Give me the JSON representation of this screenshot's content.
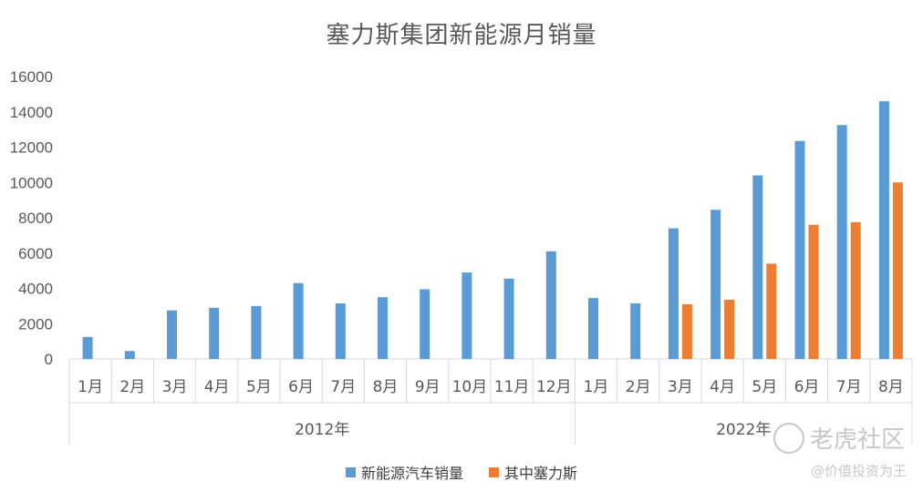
{
  "title": "塞力斯集团新能源月销量",
  "watermark": {
    "text": "老虎社区",
    "sub": "@价值投资为王"
  },
  "colors": {
    "series1": "#5B9BD5",
    "series2": "#ED7D31",
    "axis": "#d9d9d9",
    "text": "#595959"
  },
  "chart_data": {
    "type": "bar",
    "ylim": [
      0,
      16000
    ],
    "yticks": [
      0,
      2000,
      4000,
      6000,
      8000,
      10000,
      12000,
      14000,
      16000
    ],
    "grid": false,
    "legend_position": "bottom",
    "groups": [
      {
        "label": "2012年",
        "count": 12
      },
      {
        "label": "2022年",
        "count": 8
      }
    ],
    "categories": [
      "1月",
      "2月",
      "3月",
      "4月",
      "5月",
      "6月",
      "7月",
      "8月",
      "9月",
      "10月",
      "11月",
      "12月",
      "1月",
      "2月",
      "3月",
      "4月",
      "5月",
      "6月",
      "7月",
      "8月"
    ],
    "series": [
      {
        "name": "新能源汽车销量",
        "color": "#5B9BD5",
        "values": [
          1250,
          450,
          2750,
          2900,
          3000,
          4300,
          3150,
          3500,
          3950,
          4900,
          4550,
          6100,
          3450,
          3150,
          7400,
          8450,
          10400,
          12350,
          13250,
          14600
        ]
      },
      {
        "name": "其中塞力斯",
        "color": "#ED7D31",
        "values": [
          null,
          null,
          null,
          null,
          null,
          null,
          null,
          null,
          null,
          null,
          null,
          null,
          null,
          null,
          3100,
          3350,
          5400,
          7600,
          7750,
          10000
        ]
      }
    ]
  }
}
